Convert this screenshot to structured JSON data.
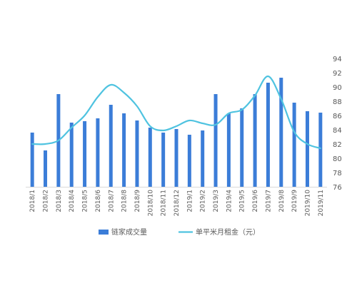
{
  "chart_data": {
    "type": "bar",
    "categories": [
      "2018/1",
      "2018/2",
      "2018/3",
      "2018/4",
      "2018/5",
      "2018/6",
      "2018/7",
      "2018/8",
      "2018/9",
      "2018/10",
      "2018/11",
      "2018/12",
      "2019/1",
      "2019/2",
      "2019/3",
      "2019/4",
      "2019/5",
      "2019/6",
      "2019/7",
      "2019/8",
      "2019/9",
      "2019/10",
      "2019/11"
    ],
    "series": [
      {
        "name": "链家成交量",
        "kind": "bar",
        "color": "#3b7dd8",
        "values": [
          83.6,
          81.1,
          89.0,
          85.0,
          85.2,
          85.6,
          87.5,
          86.3,
          85.3,
          84.3,
          83.6,
          84.1,
          83.3,
          83.9,
          89.0,
          86.3,
          87.0,
          89.0,
          90.6,
          91.3,
          87.8,
          86.6,
          86.4
        ]
      },
      {
        "name": "单平米月租金（元）",
        "kind": "line",
        "color": "#4fc3e0",
        "values": [
          82.0,
          82.0,
          82.5,
          84.3,
          86.0,
          88.6,
          90.3,
          89.2,
          87.3,
          84.5,
          83.9,
          84.5,
          85.3,
          84.9,
          84.7,
          86.3,
          86.8,
          88.8,
          91.5,
          88.3,
          83.7,
          82.0,
          81.4
        ]
      }
    ],
    "y_ticks": [
      "76",
      "78",
      "80",
      "82",
      "84",
      "86",
      "88",
      "90",
      "92",
      "94"
    ],
    "ylim": [
      76,
      94
    ],
    "legend_position": "bottom",
    "grid": false
  }
}
